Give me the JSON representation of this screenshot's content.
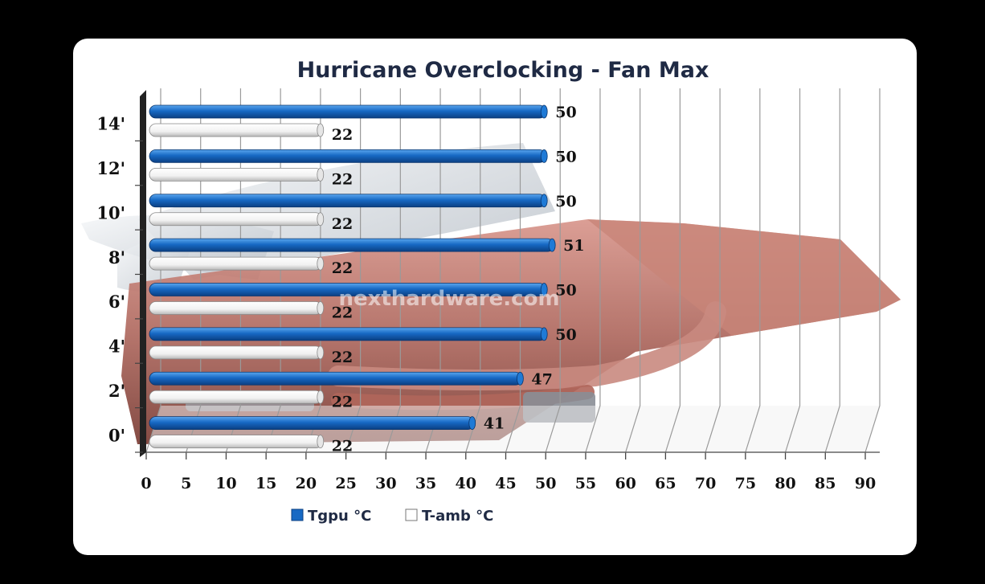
{
  "chart_data": {
    "type": "bar",
    "orientation": "horizontal",
    "title": "Hurricane Overclocking - Fan Max",
    "categories": [
      "0'",
      "2'",
      "4'",
      "6'",
      "8'",
      "10'",
      "12'",
      "14'"
    ],
    "series": [
      {
        "name": "Tgpu °C",
        "color": "#1769c4",
        "values": [
          41,
          47,
          50,
          50,
          51,
          50,
          50,
          50
        ]
      },
      {
        "name": "T-amb °C",
        "color": "#ffffff",
        "values": [
          22,
          22,
          22,
          22,
          22,
          22,
          22,
          22
        ]
      }
    ],
    "xlim": [
      0,
      90
    ],
    "xticks": [
      "0",
      "5",
      "10",
      "15",
      "20",
      "25",
      "30",
      "35",
      "40",
      "45",
      "50",
      "55",
      "60",
      "65",
      "70",
      "75",
      "80",
      "85",
      "90"
    ],
    "grid": true,
    "legend_position": "bottom-left"
  },
  "watermark": "nexthardware.com",
  "colors": {
    "frame": "#ffffff",
    "background": "#000000",
    "copper": "#b87068",
    "grid": "#9a9a9a"
  }
}
